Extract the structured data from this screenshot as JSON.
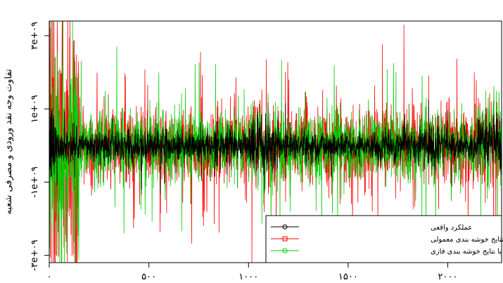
{
  "chart_data": {
    "type": "line",
    "title": "",
    "xlabel": "",
    "ylabel": "تفاوت وجه نقد ورودی و مصرفی شعبه",
    "xlim": [
      0,
      2270
    ],
    "ylim": [
      -3200000000,
      3400000000
    ],
    "grid": false,
    "legend_placement": "bottom-right",
    "x_ticks": [
      {
        "value": 0,
        "label": "۰"
      },
      {
        "value": 500,
        "label": "۵۰۰"
      },
      {
        "value": 1000,
        "label": "۱۰۰۰"
      },
      {
        "value": 1500,
        "label": "۱۵۰۰"
      },
      {
        "value": 2000,
        "label": "۲۰۰۰"
      }
    ],
    "y_ticks": [
      {
        "value": -3000000000,
        "label": "-۳e+۰۹"
      },
      {
        "value": -1000000000,
        "label": "-۱e+۰۹"
      },
      {
        "value": 1000000000,
        "label": "۱e+۰۹"
      },
      {
        "value": 3000000000,
        "label": "۳e+۰۹"
      }
    ],
    "series": [
      {
        "name": "عملکرد واقعی",
        "color": "#000000",
        "marker": "circle"
      },
      {
        "name": "براورد با نتایج خوشه بندی معمولی",
        "color": "#ff0000",
        "marker": "square"
      },
      {
        "name": "براورد با نتایج خوشه بندی فازی",
        "color": "#00cc00",
        "marker": "circle"
      }
    ]
  }
}
